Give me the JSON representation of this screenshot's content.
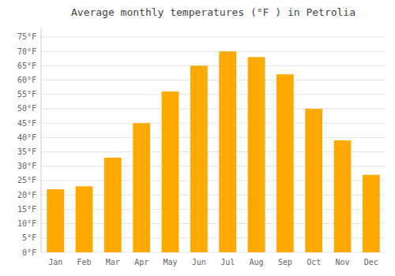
{
  "chart_data": {
    "type": "bar",
    "title": "Average monthly temperatures (°F ) in Petrolia",
    "categories": [
      "Jan",
      "Feb",
      "Mar",
      "Apr",
      "May",
      "Jun",
      "Jul",
      "Aug",
      "Sep",
      "Oct",
      "Nov",
      "Dec"
    ],
    "values": [
      22,
      23,
      33,
      45,
      56,
      65,
      70,
      68,
      62,
      50,
      39,
      27
    ],
    "color": "#FFAA00",
    "ylim": [
      0,
      78
    ],
    "yticks": [
      {
        "value": 0,
        "label": "0°F"
      },
      {
        "value": 5,
        "label": "5°F"
      },
      {
        "value": 10,
        "label": "10°F"
      },
      {
        "value": 15,
        "label": "15°F"
      },
      {
        "value": 20,
        "label": "20°F"
      },
      {
        "value": 25,
        "label": "25°F"
      },
      {
        "value": 30,
        "label": "30°F"
      },
      {
        "value": 35,
        "label": "35°F"
      },
      {
        "value": 40,
        "label": "40°F"
      },
      {
        "value": 45,
        "label": "45°F"
      },
      {
        "value": 50,
        "label": "50°F"
      },
      {
        "value": 55,
        "label": "55°F"
      },
      {
        "value": 60,
        "label": "60°F"
      },
      {
        "value": 65,
        "label": "65°F"
      },
      {
        "value": 70,
        "label": "70°F"
      },
      {
        "value": 75,
        "label": "75°F"
      }
    ],
    "grid": true
  }
}
